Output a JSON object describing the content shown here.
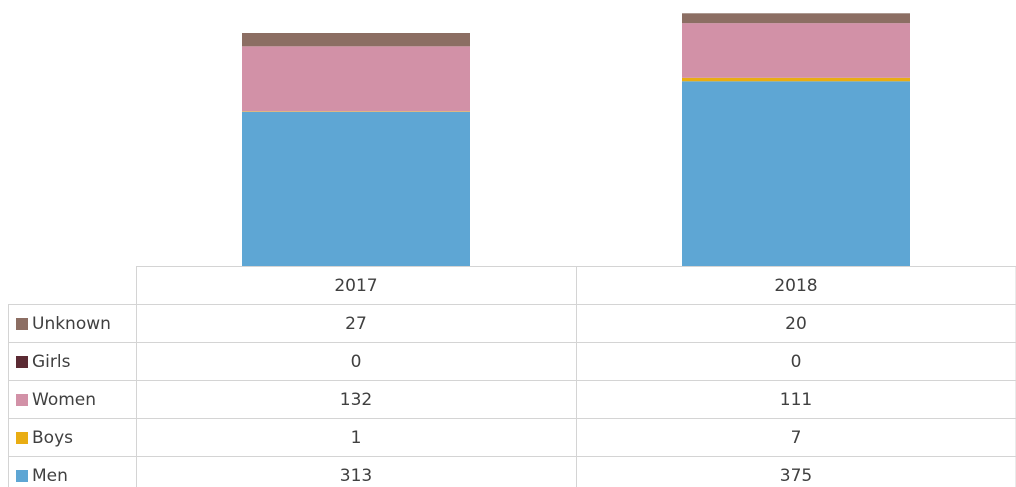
{
  "chart_data": {
    "type": "stacked_bar",
    "categories": [
      "2017",
      "2018"
    ],
    "series": [
      {
        "name": "Unknown",
        "color": "#8c6e63",
        "values": [
          27,
          20
        ]
      },
      {
        "name": "Girls",
        "color": "#5b2a33",
        "values": [
          0,
          0
        ]
      },
      {
        "name": "Women",
        "color": "#d291a7",
        "values": [
          132,
          111
        ]
      },
      {
        "name": "Boys",
        "color": "#e9ad13",
        "values": [
          1,
          7
        ]
      },
      {
        "name": "Men",
        "color": "#5ea6d4",
        "values": [
          313,
          375
        ]
      }
    ],
    "ylim": [
      0,
      540
    ]
  }
}
